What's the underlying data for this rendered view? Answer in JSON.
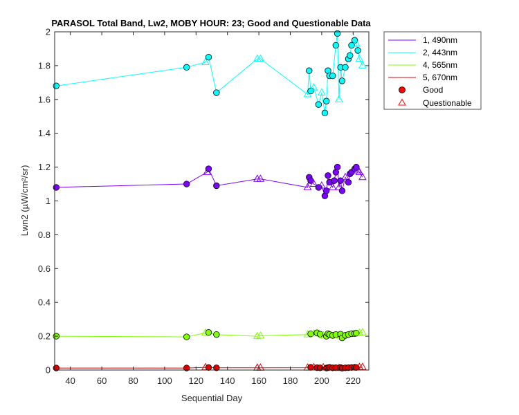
{
  "chart_data": {
    "type": "line",
    "title": "PARASOL Total Band, Lw2, MOBY HOUR: 23;  Good and Questionable Data",
    "xlabel": "Sequential Day",
    "ylabel": "Lwn2 (µW/cm²/sr)",
    "xlim": [
      30,
      230
    ],
    "ylim": [
      0,
      2
    ],
    "xticks": [
      40,
      60,
      80,
      100,
      120,
      140,
      160,
      180,
      200,
      220
    ],
    "yticks": [
      0,
      0.2,
      0.4,
      0.6,
      0.8,
      1,
      1.2,
      1.4,
      1.6,
      1.8,
      2
    ],
    "ytick_labels": [
      "0",
      "0.2",
      "0.4",
      "0.6",
      "0.8",
      "1",
      "1.2",
      "1.4",
      "1.6",
      "1.8",
      "2"
    ],
    "grid": false,
    "legend_position": "outside-top-right",
    "markers": [
      {
        "label": "Good",
        "symbol": "circle",
        "color": "#ff0000"
      },
      {
        "label": "Questionable",
        "symbol": "triangle",
        "color": "#ff0000"
      }
    ],
    "series": [
      {
        "name": "1, 490nm",
        "color": "#7e00ff",
        "x": [
          31,
          114,
          127,
          128,
          133,
          159,
          161,
          191,
          192,
          193,
          195,
          198,
          200,
          202,
          203,
          204,
          205,
          207,
          208,
          209,
          210,
          211,
          212,
          213,
          215,
          217,
          218,
          219,
          221,
          222,
          223,
          224,
          226
        ],
        "y": [
          1.08,
          1.1,
          1.17,
          1.19,
          1.09,
          1.13,
          1.13,
          1.08,
          1.14,
          1.12,
          1.1,
          1.08,
          1.09,
          1.03,
          1.06,
          1.15,
          1.11,
          1.08,
          1.12,
          1.17,
          1.2,
          1.08,
          1.12,
          1.06,
          1.14,
          1.11,
          1.16,
          1.17,
          1.19,
          1.2,
          1.18,
          1.17,
          1.14
        ],
        "status": [
          "good",
          "good",
          "questionable",
          "good",
          "good",
          "questionable",
          "questionable",
          "questionable",
          "good",
          "good",
          "questionable",
          "good",
          "questionable",
          "good",
          "good",
          "good",
          "good",
          "questionable",
          "good",
          "good",
          "good",
          "questionable",
          "good",
          "good",
          "questionable",
          "good",
          "good",
          "good",
          "good",
          "good",
          "questionable",
          "questionable",
          "questionable"
        ]
      },
      {
        "name": "2, 443nm",
        "color": "#00ffff",
        "x": [
          31,
          114,
          126,
          128,
          133,
          159,
          161,
          191,
          192,
          193,
          195,
          198,
          200,
          202,
          203,
          204,
          205,
          207,
          209,
          210,
          211,
          212,
          213,
          215,
          217,
          218,
          219,
          221,
          222,
          223,
          224,
          226
        ],
        "y": [
          1.68,
          1.79,
          1.82,
          1.85,
          1.64,
          1.84,
          1.84,
          1.63,
          1.77,
          1.65,
          1.67,
          1.57,
          1.64,
          1.52,
          1.59,
          1.77,
          1.74,
          1.74,
          1.92,
          1.99,
          1.6,
          1.79,
          1.71,
          1.79,
          1.84,
          1.86,
          1.92,
          1.95,
          1.93,
          1.89,
          1.84,
          1.8
        ],
        "status": [
          "good",
          "good",
          "questionable",
          "good",
          "good",
          "questionable",
          "questionable",
          "questionable",
          "good",
          "good",
          "questionable",
          "good",
          "questionable",
          "good",
          "good",
          "good",
          "good",
          "good",
          "good",
          "good",
          "questionable",
          "good",
          "good",
          "good",
          "good",
          "good",
          "good",
          "good",
          "questionable",
          "good",
          "questionable",
          "questionable"
        ]
      },
      {
        "name": "4, 565nm",
        "color": "#7fff00",
        "x": [
          31,
          114,
          126,
          128,
          133,
          159,
          161,
          191,
          193,
          195,
          197,
          199,
          201,
          203,
          204,
          205,
          207,
          209,
          211,
          212,
          213,
          215,
          217,
          219,
          221,
          222,
          224,
          226
        ],
        "y": [
          0.2,
          0.196,
          0.22,
          0.222,
          0.21,
          0.2,
          0.203,
          0.21,
          0.214,
          0.216,
          0.22,
          0.212,
          0.205,
          0.2,
          0.215,
          0.21,
          0.205,
          0.21,
          0.205,
          0.212,
          0.19,
          0.205,
          0.21,
          0.215,
          0.216,
          0.218,
          0.22,
          0.223
        ],
        "status": [
          "good",
          "good",
          "questionable",
          "good",
          "good",
          "questionable",
          "questionable",
          "questionable",
          "good",
          "questionable",
          "good",
          "good",
          "questionable",
          "good",
          "good",
          "good",
          "good",
          "good",
          "questionable",
          "good",
          "good",
          "good",
          "good",
          "good",
          "good",
          "good",
          "questionable",
          "questionable"
        ]
      },
      {
        "name": "5, 670nm",
        "color": "#e00000",
        "x": [
          31,
          114,
          126,
          128,
          133,
          159,
          161,
          191,
          193,
          195,
          197,
          199,
          201,
          203,
          204,
          205,
          207,
          209,
          211,
          212,
          213,
          215,
          217,
          219,
          221,
          222,
          224,
          226
        ],
        "y": [
          0.012,
          0.012,
          0.016,
          0.015,
          0.013,
          0.013,
          0.013,
          0.014,
          0.016,
          0.015,
          0.014,
          0.013,
          0.015,
          0.012,
          0.014,
          0.016,
          0.013,
          0.014,
          0.012,
          0.015,
          0.011,
          0.013,
          0.014,
          0.015,
          0.016,
          0.015,
          0.017,
          0.017
        ],
        "status": [
          "good",
          "good",
          "questionable",
          "good",
          "good",
          "questionable",
          "questionable",
          "questionable",
          "good",
          "questionable",
          "good",
          "good",
          "questionable",
          "good",
          "good",
          "good",
          "good",
          "good",
          "questionable",
          "good",
          "good",
          "good",
          "good",
          "good",
          "good",
          "good",
          "questionable",
          "questionable"
        ]
      }
    ]
  }
}
